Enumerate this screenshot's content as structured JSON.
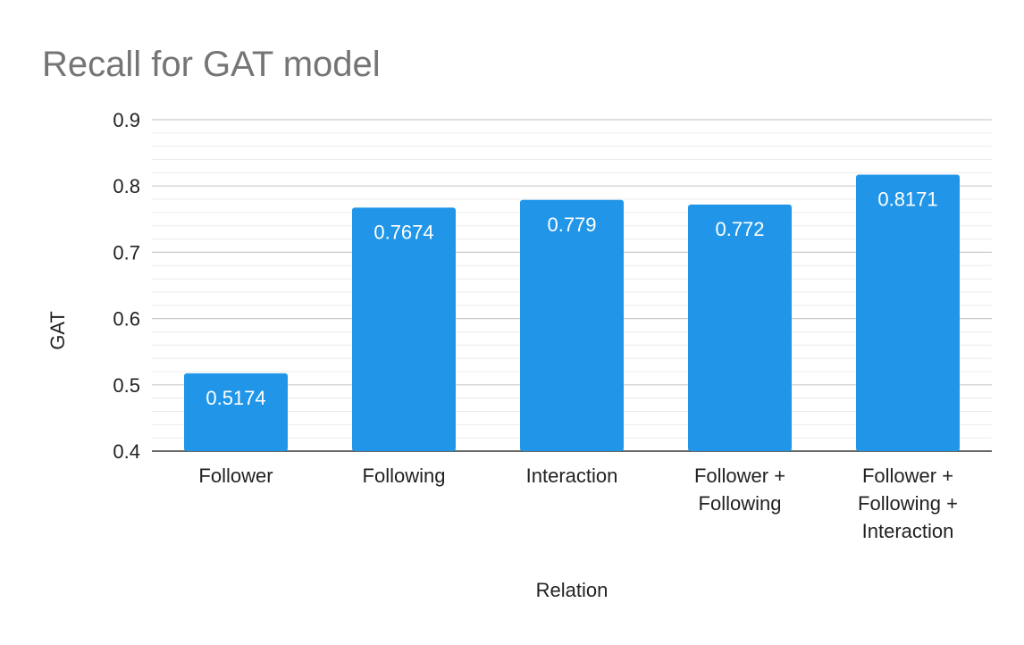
{
  "chart_data": {
    "type": "bar",
    "title": "Recall for GAT model",
    "xlabel": "Relation",
    "ylabel": "GAT",
    "ylim": [
      0.4,
      0.9
    ],
    "major_ticks": [
      0.4,
      0.5,
      0.6,
      0.7,
      0.8,
      0.9
    ],
    "minor_gridlines": true,
    "legend": "none",
    "bar_color": "#2196e8",
    "categories": [
      [
        "Follower"
      ],
      [
        "Following"
      ],
      [
        "Interaction"
      ],
      [
        "Follower +",
        "Following"
      ],
      [
        "Follower +",
        "Following +",
        "Interaction"
      ]
    ],
    "values": [
      0.5174,
      0.7674,
      0.779,
      0.772,
      0.8171
    ],
    "value_labels": [
      "0.5174",
      "0.7674",
      "0.779",
      "0.772",
      "0.8171"
    ]
  }
}
